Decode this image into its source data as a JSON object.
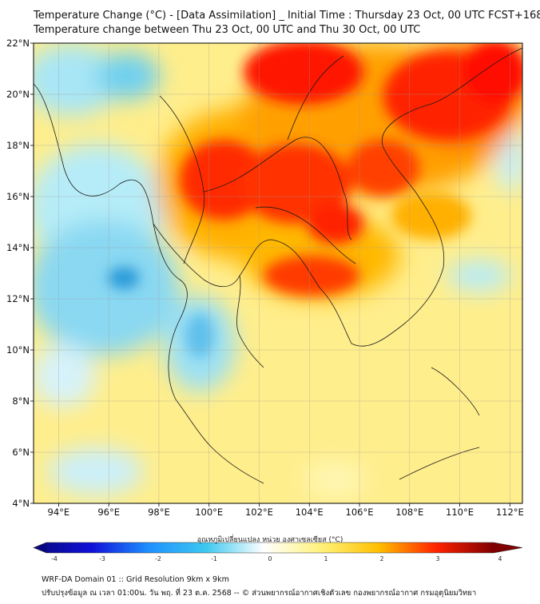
{
  "title": {
    "line1": "Temperature Change (°C) - [Data Assimilation] _ Initial Time : Thursday 23 Oct, 00 UTC FCST+168",
    "line2": "Temperature change between Thu 23 Oct, 00 UTC and Thu 30 Oct, 00 UTC"
  },
  "map": {
    "lon_range": [
      93,
      112.5
    ],
    "lat_range": [
      4,
      22
    ],
    "lon_ticks": [
      "94°E",
      "96°E",
      "98°E",
      "100°E",
      "102°E",
      "104°E",
      "106°E",
      "108°E",
      "110°E",
      "112°E"
    ],
    "lat_ticks": [
      "22°N",
      "20°N",
      "18°N",
      "16°N",
      "14°N",
      "12°N",
      "10°N",
      "8°N",
      "6°N",
      "4°N"
    ],
    "lon_values": [
      94,
      96,
      98,
      100,
      102,
      104,
      106,
      108,
      110,
      112
    ],
    "lat_values": [
      22,
      20,
      18,
      16,
      14,
      12,
      10,
      8,
      6,
      4
    ]
  },
  "colorbar": {
    "label": "อุณหภูมิเปลี่ยนแปลง หน่วย องศาเซลเซียส (°C)",
    "min": -4,
    "max": 4,
    "ticks": [
      "-4",
      "-3",
      "-2",
      "-1",
      "0",
      "1",
      "2",
      "3",
      "4"
    ],
    "colors": {
      "neg4": "#08087e",
      "neg3": "#1010d8",
      "neg2": "#1e90ff",
      "neg1": "#3ec8f0",
      "zero": "#ffffff",
      "pos1": "#fff27a",
      "pos2": "#ffc000",
      "pos3": "#ff2200",
      "pos4": "#7e0000"
    }
  },
  "footer": {
    "line1": "WRF-DA Domain 01 :: Grid Resolution 9km x 9km",
    "line2": "ปรับปรุงข้อมูล ณ เวลา 01:00น. วัน พฤ. ที่ 23 ต.ค. 2568 -- © ส่วนพยากรณ์อากาศเชิงตัวเลข กองพยากรณ์อากาศ กรมอุตุนิยมวิทยา"
  }
}
